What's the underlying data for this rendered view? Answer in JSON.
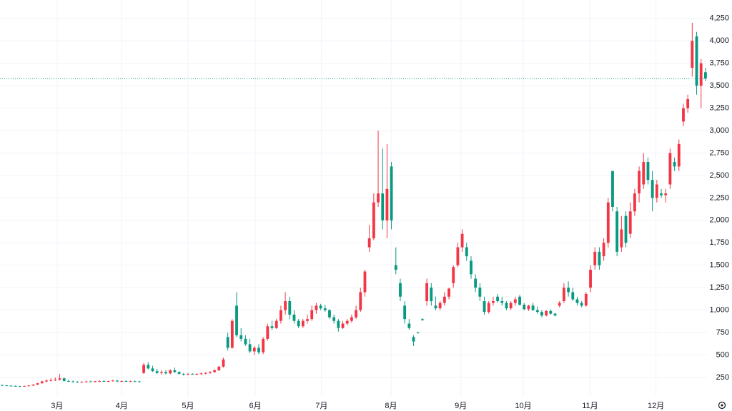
{
  "chart_data": {
    "type": "candlestick",
    "open": [
      165,
      162,
      158,
      155,
      152,
      150,
      155,
      160,
      170,
      185,
      205,
      215,
      220,
      225,
      240,
      210,
      205,
      200,
      198,
      200,
      205,
      200,
      208,
      210,
      205,
      210,
      215,
      205,
      210,
      205,
      208,
      205,
      300,
      390,
      350,
      320,
      300,
      310,
      295,
      330,
      310,
      290,
      285,
      290,
      285,
      290,
      295,
      300,
      310,
      330,
      370,
      700,
      580,
      1050,
      720,
      680,
      620,
      540,
      580,
      530,
      680,
      820,
      800,
      880,
      1000,
      1100,
      950,
      880,
      820,
      880,
      900,
      1000,
      1050,
      1020,
      1000,
      920,
      880,
      800,
      850,
      880,
      920,
      1000,
      1200,
      1700,
      1800,
      2200,
      2300,
      2000,
      2600,
      1500,
      1300,
      1050,
      850,
      700,
      750,
      900,
      1100,
      1250,
      1050,
      1020,
      1080,
      1150,
      1300,
      1500,
      1700,
      1700,
      1550,
      1350,
      1250,
      1100,
      980,
      1080,
      1150,
      1100,
      1080,
      1020,
      1080,
      1150,
      1060,
      1010,
      1050,
      1000,
      980,
      940,
      990,
      960,
      1050,
      1100,
      1250,
      1200,
      1120,
      1080,
      1050,
      1250,
      1500,
      1650,
      1600,
      1750,
      2550,
      2100,
      1700,
      2050,
      1850,
      2100,
      2300,
      2400,
      2650,
      2450,
      2250,
      2300,
      2280,
      2400,
      2650,
      2600,
      3100,
      3250,
      3700,
      4050,
      3500,
      3650
    ],
    "high": [
      170,
      166,
      163,
      160,
      158,
      158,
      165,
      175,
      190,
      215,
      230,
      240,
      250,
      290,
      250,
      225,
      215,
      210,
      208,
      212,
      215,
      212,
      218,
      220,
      215,
      225,
      222,
      215,
      220,
      215,
      215,
      212,
      410,
      420,
      380,
      345,
      330,
      330,
      340,
      360,
      320,
      300,
      300,
      300,
      295,
      305,
      310,
      320,
      340,
      380,
      470,
      750,
      900,
      1200,
      800,
      720,
      680,
      600,
      620,
      700,
      850,
      880,
      900,
      1050,
      1200,
      1150,
      1000,
      900,
      900,
      950,
      1050,
      1080,
      1070,
      1060,
      1010,
      950,
      900,
      880,
      900,
      950,
      1050,
      1250,
      1450,
      1950,
      2300,
      3000,
      2800,
      2850,
      2650,
      1700,
      1350,
      1100,
      900,
      720,
      760,
      910,
      1350,
      1300,
      1150,
      1100,
      1200,
      1250,
      1500,
      1750,
      1900,
      1750,
      1600,
      1400,
      1300,
      1150,
      1100,
      1150,
      1180,
      1150,
      1100,
      1100,
      1150,
      1170,
      1080,
      1060,
      1080,
      1040,
      1000,
      1000,
      1010,
      970,
      1100,
      1300,
      1320,
      1250,
      1150,
      1100,
      1200,
      1500,
      1700,
      1700,
      1800,
      2250,
      2550,
      2150,
      2050,
      2100,
      2200,
      2350,
      2600,
      2750,
      2700,
      2550,
      2450,
      2350,
      2350,
      2800,
      2700,
      2900,
      3300,
      3400,
      4200,
      4100,
      3800,
      3700
    ],
    "low": [
      160,
      155,
      150,
      148,
      145,
      146,
      150,
      155,
      165,
      180,
      195,
      205,
      210,
      215,
      205,
      200,
      195,
      192,
      190,
      195,
      198,
      195,
      200,
      202,
      198,
      205,
      200,
      198,
      200,
      198,
      200,
      198,
      290,
      340,
      310,
      290,
      280,
      285,
      285,
      300,
      280,
      270,
      275,
      280,
      275,
      280,
      285,
      290,
      300,
      320,
      360,
      550,
      570,
      700,
      650,
      600,
      520,
      500,
      510,
      510,
      660,
      780,
      790,
      850,
      950,
      900,
      850,
      800,
      800,
      850,
      880,
      960,
      1000,
      980,
      900,
      850,
      760,
      790,
      830,
      860,
      900,
      980,
      1150,
      1650,
      1780,
      2150,
      1900,
      1800,
      1900,
      1400,
      1100,
      850,
      780,
      600,
      740,
      880,
      1050,
      1050,
      1000,
      1000,
      1050,
      1120,
      1250,
      1480,
      1650,
      1550,
      1350,
      1200,
      1100,
      950,
      960,
      1050,
      1080,
      1050,
      1000,
      1000,
      1050,
      1050,
      1000,
      990,
      990,
      960,
      920,
      930,
      950,
      930,
      1030,
      1080,
      1150,
      1100,
      1050,
      1030,
      1040,
      1200,
      1450,
      1450,
      1550,
      1700,
      2100,
      1600,
      1650,
      1700,
      1800,
      2050,
      2200,
      2350,
      2400,
      2100,
      2200,
      2250,
      2200,
      2350,
      2550,
      2550,
      3050,
      3200,
      3600,
      3400,
      3250,
      3550
    ],
    "close": [
      162,
      158,
      155,
      152,
      150,
      155,
      160,
      170,
      185,
      205,
      215,
      220,
      225,
      240,
      210,
      205,
      200,
      198,
      200,
      205,
      200,
      208,
      210,
      205,
      210,
      215,
      205,
      210,
      205,
      208,
      205,
      200,
      390,
      350,
      320,
      300,
      310,
      295,
      330,
      310,
      290,
      285,
      290,
      285,
      290,
      295,
      300,
      310,
      330,
      370,
      450,
      580,
      880,
      720,
      680,
      620,
      540,
      580,
      530,
      680,
      820,
      800,
      880,
      1000,
      1100,
      950,
      880,
      820,
      880,
      900,
      1000,
      1050,
      1020,
      1000,
      920,
      880,
      800,
      850,
      880,
      920,
      1000,
      1200,
      1430,
      1800,
      2200,
      2300,
      2000,
      2350,
      2000,
      1450,
      1150,
      900,
      800,
      650,
      745,
      890,
      1300,
      1100,
      1020,
      1080,
      1150,
      1240,
      1480,
      1700,
      1850,
      1600,
      1400,
      1250,
      1150,
      980,
      1080,
      1100,
      1100,
      1080,
      1020,
      1080,
      1120,
      1060,
      1010,
      1050,
      1000,
      980,
      940,
      990,
      960,
      940,
      1080,
      1250,
      1200,
      1120,
      1080,
      1050,
      1180,
      1450,
      1650,
      1500,
      1750,
      2200,
      2150,
      1650,
      1900,
      1750,
      2100,
      2300,
      2550,
      2650,
      2450,
      2250,
      2400,
      2280,
      2300,
      2750,
      2600,
      2850,
      3250,
      3350,
      4000,
      3500,
      3750,
      3580
    ],
    "up_color": "#f23645",
    "down_color": "#089981",
    "last_price": 3580,
    "last_price_color": "#089981",
    "xlim": [
      -0.5,
      159.5
    ],
    "xticks": [
      {
        "value": 12.4,
        "label": "3月"
      },
      {
        "value": 27,
        "label": "4月"
      },
      {
        "value": 42,
        "label": "5月"
      },
      {
        "value": 57.2,
        "label": "6月"
      },
      {
        "value": 72.2,
        "label": "7月"
      },
      {
        "value": 87.9,
        "label": "8月"
      },
      {
        "value": 103.7,
        "label": "9月"
      },
      {
        "value": 117.8,
        "label": "10月"
      },
      {
        "value": 132.9,
        "label": "11月"
      },
      {
        "value": 147.8,
        "label": "12月"
      }
    ],
    "ylim": [
      35,
      4455
    ],
    "yticks": [
      250,
      500,
      750,
      {
        "value": 1000,
        "label": "1,000"
      },
      {
        "value": 1250,
        "label": "1,250"
      },
      {
        "value": 1500,
        "label": "1,500"
      },
      {
        "value": 1750,
        "label": "1,750"
      },
      {
        "value": 2000,
        "label": "2,000"
      },
      {
        "value": 2250,
        "label": "2,250"
      },
      {
        "value": 2500,
        "label": "2,500"
      },
      {
        "value": 2750,
        "label": "2,750"
      },
      {
        "value": 3000,
        "label": "3,000"
      },
      {
        "value": 3250,
        "label": "3,250"
      },
      {
        "value": 3500,
        "label": "3,500"
      },
      {
        "value": 3750,
        "label": "3,750"
      },
      {
        "value": 4000,
        "label": "4,000"
      },
      {
        "value": 4250,
        "label": "4,250"
      }
    ],
    "grid": true
  }
}
